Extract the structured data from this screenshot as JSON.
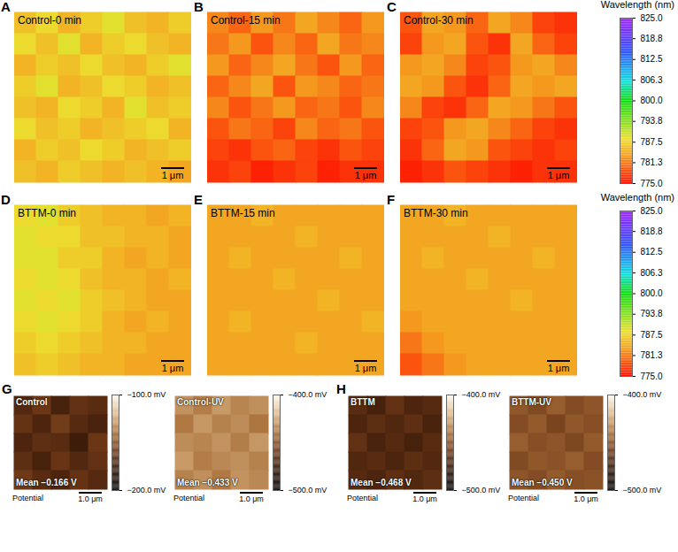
{
  "chart_data": [
    {
      "type": "heatmap",
      "colorbar": {
        "title": "Wavelength (nm)",
        "range": [
          775,
          825
        ],
        "ticks": [
          {
            "value": 775,
            "label": "775.0"
          },
          781.3,
          787.5,
          793.8,
          {
            "value": 800,
            "label": "800.0"
          },
          806.3,
          812.5,
          818.8,
          {
            "value": 825,
            "label": "825.0"
          }
        ]
      },
      "panels": [
        {
          "panel": "A",
          "title": "Control-0 min",
          "scale_bar": "1 μm",
          "tick_labels": false,
          "cells": [
            [
              786,
              788,
              785,
              787,
              789,
              786,
              785,
              787
            ],
            [
              788,
              786,
              789,
              785,
              787,
              788,
              786,
              785
            ],
            [
              785,
              787,
              786,
              788,
              786,
              785,
              787,
              789
            ],
            [
              787,
              789,
              785,
              786,
              788,
              787,
              785,
              786
            ],
            [
              786,
              785,
              788,
              787,
              785,
              789,
              786,
              787
            ],
            [
              788,
              786,
              787,
              785,
              786,
              787,
              788,
              785
            ],
            [
              785,
              787,
              786,
              788,
              787,
              785,
              786,
              787
            ],
            [
              786,
              785,
              787,
              786,
              785,
              786,
              785,
              784
            ]
          ]
        },
        {
          "panel": "B",
          "title": "Control-15 min",
          "scale_bar": "1 μm",
          "tick_labels": false,
          "cells": [
            [
              782,
              780,
              783,
              781,
              784,
              782,
              780,
              783
            ],
            [
              781,
              783,
              779,
              782,
              780,
              784,
              781,
              782
            ],
            [
              783,
              780,
              782,
              784,
              781,
              779,
              783,
              780
            ],
            [
              780,
              782,
              784,
              779,
              783,
              782,
              780,
              781
            ],
            [
              782,
              779,
              781,
              783,
              780,
              781,
              779,
              782
            ],
            [
              779,
              781,
              780,
              778,
              782,
              780,
              781,
              779
            ],
            [
              778,
              777,
              779,
              780,
              778,
              777,
              779,
              778
            ],
            [
              777,
              778,
              776,
              777,
              778,
              776,
              777,
              777
            ]
          ]
        },
        {
          "panel": "C",
          "title": "Control-30 min",
          "scale_bar": "1 μm",
          "tick_labels": false,
          "cells": [
            [
              779,
              784,
              783,
              780,
              784,
              782,
              778,
              777
            ],
            [
              778,
              783,
              784,
              779,
              777,
              784,
              780,
              778
            ],
            [
              783,
              784,
              782,
              778,
              779,
              783,
              784,
              782
            ],
            [
              784,
              783,
              779,
              777,
              780,
              784,
              783,
              784
            ],
            [
              782,
              778,
              777,
              780,
              784,
              783,
              781,
              779
            ],
            [
              778,
              779,
              783,
              784,
              782,
              780,
              778,
              777
            ],
            [
              777,
              780,
              784,
              783,
              779,
              778,
              777,
              778
            ],
            [
              776,
              777,
              779,
              778,
              777,
              776,
              777,
              777
            ]
          ]
        }
      ]
    },
    {
      "type": "heatmap",
      "colorbar": {
        "title": "Wavelength (nm)",
        "range": [
          775,
          825
        ],
        "ticks": [
          {
            "value": 775,
            "label": "775.0"
          },
          781.3,
          787.5,
          793.8,
          {
            "value": 800,
            "label": "800.0"
          },
          806.3,
          812.5,
          818.8,
          {
            "value": 825,
            "label": "825.0"
          }
        ]
      },
      "panels": [
        {
          "panel": "D",
          "title": "BTTM-0 min",
          "scale_bar": "1 μm",
          "tick_labels": false,
          "cells": [
            [
              788,
              789,
              787,
              786,
              785,
              785,
              784,
              785
            ],
            [
              789,
              788,
              788,
              786,
              786,
              785,
              785,
              784
            ],
            [
              789,
              789,
              787,
              787,
              785,
              784,
              785,
              784
            ],
            [
              788,
              789,
              788,
              786,
              785,
              785,
              784,
              785
            ],
            [
              789,
              788,
              789,
              787,
              786,
              785,
              784,
              784
            ],
            [
              788,
              789,
              788,
              787,
              785,
              784,
              785,
              784
            ],
            [
              787,
              788,
              787,
              786,
              785,
              785,
              784,
              784
            ],
            [
              786,
              787,
              786,
              785,
              785,
              784,
              784,
              784
            ]
          ]
        },
        {
          "panel": "E",
          "title": "BTTM-15 min",
          "scale_bar": "1 μm",
          "tick_labels": false,
          "cells": [
            [
              784,
              784,
              785,
              784,
              784,
              784,
              784,
              784
            ],
            [
              784,
              784,
              784,
              784,
              785,
              784,
              784,
              784
            ],
            [
              784,
              785,
              784,
              784,
              784,
              784,
              785,
              784
            ],
            [
              784,
              784,
              784,
              785,
              784,
              784,
              784,
              784
            ],
            [
              784,
              784,
              784,
              784,
              784,
              785,
              784,
              784
            ],
            [
              784,
              785,
              784,
              784,
              784,
              784,
              784,
              785
            ],
            [
              784,
              784,
              784,
              784,
              785,
              784,
              784,
              784
            ],
            [
              784,
              784,
              784,
              784,
              784,
              784,
              784,
              784
            ]
          ]
        },
        {
          "panel": "F",
          "title": "BTTM-30 min",
          "scale_bar": "1 μm",
          "tick_labels": false,
          "cells": [
            [
              784,
              784,
              785,
              784,
              784,
              784,
              784,
              784
            ],
            [
              784,
              784,
              784,
              784,
              785,
              784,
              784,
              784
            ],
            [
              784,
              785,
              784,
              784,
              784,
              784,
              785,
              784
            ],
            [
              784,
              784,
              784,
              785,
              784,
              784,
              784,
              784
            ],
            [
              784,
              784,
              784,
              784,
              784,
              785,
              784,
              784
            ],
            [
              783,
              784,
              784,
              784,
              784,
              784,
              784,
              784
            ],
            [
              781,
              783,
              784,
              784,
              784,
              784,
              784,
              784
            ],
            [
              779,
              781,
              783,
              784,
              784,
              784,
              784,
              784
            ]
          ]
        }
      ]
    },
    {
      "type": "heatmap",
      "panels": [
        {
          "panel": "G",
          "title": "Control",
          "mean_label": "Mean −0.166 V",
          "caption": "Potential",
          "scale_bar": "1.0 μm",
          "tick_labels": false,
          "colorbar": {
            "range": [
              -200,
              -100
            ],
            "ticks": [
              {
                "value": -200,
                "label": "−200.0 mV"
              },
              {
                "value": -100,
                "label": "−100.0 mV"
              }
            ]
          },
          "cells": [
            [
              -168,
              -160,
              -172,
              -163,
              -166
            ],
            [
              -162,
              -170,
              -158,
              -167,
              -171
            ],
            [
              -170,
              -164,
              -166,
              -175,
              -160
            ],
            [
              -165,
              -172,
              -161,
              -168,
              -163
            ],
            [
              -159,
              -166,
              -170,
              -162,
              -167
            ]
          ]
        },
        {
          "title": "Control-UV",
          "mean_label": "Mean −0.433 V",
          "caption": "Potential",
          "scale_bar": "1.0 μm",
          "tick_labels": false,
          "colorbar": {
            "range": [
              -500,
              -400
            ],
            "ticks": [
              {
                "value": -500,
                "label": "−500.0 mV"
              },
              {
                "value": -400,
                "label": "−400.0 mV"
              }
            ]
          },
          "cells": [
            [
              -430,
              -436,
              -428,
              -434,
              -431
            ],
            [
              -437,
              -429,
              -435,
              -432,
              -438
            ],
            [
              -432,
              -434,
              -430,
              -436,
              -429
            ],
            [
              -428,
              -436,
              -433,
              -431,
              -435
            ],
            [
              -435,
              -431,
              -437,
              -430,
              -433
            ]
          ]
        },
        {
          "panel": "H",
          "title": "BTTM",
          "mean_label": "Mean −0.468 V",
          "caption": "Potential",
          "scale_bar": "1.0 μm",
          "tick_labels": false,
          "colorbar": {
            "range": [
              -500,
              -400
            ],
            "ticks": [
              {
                "value": -500,
                "label": "−500.0 mV"
              },
              {
                "value": -400,
                "label": "−400.0 mV"
              }
            ]
          },
          "cells": [
            [
              -466,
              -472,
              -463,
              -470,
              -467
            ],
            [
              -470,
              -465,
              -469,
              -464,
              -471
            ],
            [
              -463,
              -471,
              -467,
              -472,
              -466
            ],
            [
              -469,
              -466,
              -470,
              -465,
              -468
            ],
            [
              -467,
              -470,
              -464,
              -469,
              -465
            ]
          ]
        },
        {
          "title": "BTTM-UV",
          "mean_label": "Mean −0.450 V",
          "caption": "Potential",
          "scale_bar": "1.0 μm",
          "tick_labels": false,
          "colorbar": {
            "range": [
              -500,
              -400
            ],
            "ticks": [
              {
                "value": -500,
                "label": "−500.0 mV"
              },
              {
                "value": -400,
                "label": "−400.0 mV"
              }
            ]
          },
          "cells": [
            [
              -448,
              -453,
              -446,
              -452,
              -449
            ],
            [
              -452,
              -447,
              -455,
              -448,
              -451
            ],
            [
              -446,
              -451,
              -449,
              -454,
              -447
            ],
            [
              -453,
              -448,
              -450,
              -446,
              -452
            ],
            [
              -449,
              -452,
              -447,
              -451,
              -450
            ]
          ]
        }
      ]
    }
  ]
}
